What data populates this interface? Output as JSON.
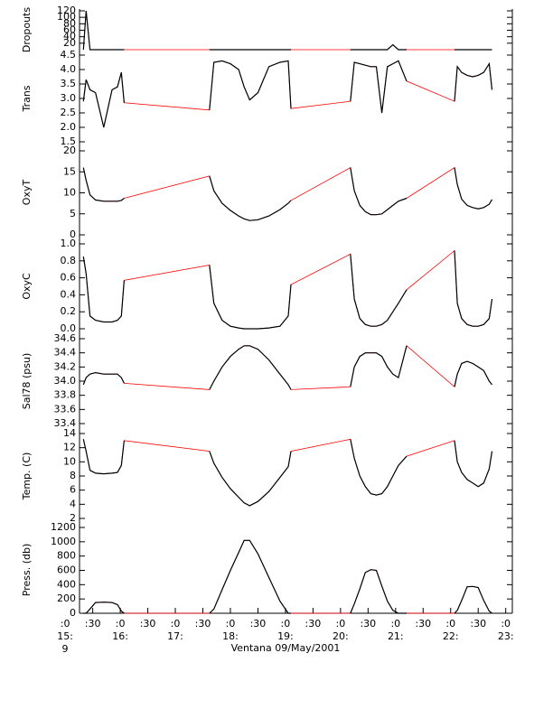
{
  "chart_data": {
    "type": "line",
    "xlabel": "Ventana 09/May/2001",
    "x_day_label": "9",
    "xlim": [
      15.26,
      23.12
    ],
    "xticks": [
      {
        "value": 15.0,
        "label": ":0"
      },
      {
        "value": 15.5,
        "label": ":30"
      },
      {
        "value": 16.0,
        "label": ":0"
      },
      {
        "value": 16.5,
        "label": ":30"
      },
      {
        "value": 17.0,
        "label": ":0"
      },
      {
        "value": 17.5,
        "label": ":30"
      },
      {
        "value": 18.0,
        "label": ":0"
      },
      {
        "value": 18.5,
        "label": ":30"
      },
      {
        "value": 19.0,
        "label": ":0"
      },
      {
        "value": 19.5,
        "label": ":30"
      },
      {
        "value": 20.0,
        "label": ":0"
      },
      {
        "value": 20.5,
        "label": ":30"
      },
      {
        "value": 21.0,
        "label": ":0"
      },
      {
        "value": 21.5,
        "label": ":30"
      },
      {
        "value": 22.0,
        "label": ":0"
      },
      {
        "value": 22.5,
        "label": ":30"
      },
      {
        "value": 23.0,
        "label": ":0"
      }
    ],
    "xhour_labels": [
      {
        "value": 15,
        "label": "15:"
      },
      {
        "value": 16,
        "label": "16:"
      },
      {
        "value": 17,
        "label": "17:"
      },
      {
        "value": 18,
        "label": "18:"
      },
      {
        "value": 19,
        "label": "19:"
      },
      {
        "value": 20,
        "label": "20:"
      },
      {
        "value": 21,
        "label": "21:"
      },
      {
        "value": 22,
        "label": "22:"
      },
      {
        "value": 23,
        "label": "23:"
      }
    ],
    "color": "#000000",
    "connector_color": "#ff0000",
    "x": [
      15.33,
      15.38,
      15.45,
      15.55,
      15.7,
      15.85,
      15.95,
      16.02,
      16.07,
      17.62,
      17.7,
      17.85,
      18.0,
      18.15,
      18.25,
      18.35,
      18.5,
      18.7,
      18.9,
      19.05,
      19.1,
      20.18,
      20.25,
      20.35,
      20.45,
      20.55,
      20.65,
      20.75,
      20.85,
      20.95,
      21.05,
      21.2,
      22.07,
      22.12,
      22.2,
      22.3,
      22.4,
      22.5,
      22.6,
      22.7,
      22.75
    ],
    "panels": [
      {
        "ylabel": "Dropouts",
        "ylim": [
          0,
          120
        ],
        "yticks": [
          20,
          40,
          60,
          80,
          100,
          120
        ],
        "values": [
          0,
          120,
          0,
          0,
          0,
          0,
          0,
          0,
          0,
          0,
          0,
          0,
          0,
          0,
          0,
          0,
          0,
          0,
          0,
          0,
          0,
          0,
          0,
          0,
          0,
          0,
          0,
          0,
          0,
          15,
          0,
          0,
          0,
          0,
          0,
          0,
          0,
          0,
          0,
          0,
          0
        ]
      },
      {
        "ylabel": "Trans",
        "ylim": [
          1.5,
          4.5
        ],
        "yticks": [
          1.5,
          {
            "value": 2.0,
            "label": "2.0"
          },
          2.5,
          {
            "value": 3.0,
            "label": "3.0"
          },
          3.5,
          {
            "value": 4.0,
            "label": "4.0"
          },
          4.5
        ],
        "values": [
          2.9,
          3.65,
          3.3,
          3.2,
          2.0,
          3.3,
          3.4,
          3.9,
          2.85,
          2.6,
          4.25,
          4.3,
          4.2,
          4.0,
          3.4,
          2.95,
          3.2,
          4.1,
          4.25,
          4.3,
          2.65,
          2.9,
          4.25,
          4.2,
          4.15,
          4.1,
          4.1,
          2.5,
          4.1,
          4.2,
          4.3,
          3.6,
          2.9,
          4.1,
          3.9,
          3.8,
          3.75,
          3.8,
          3.9,
          4.2,
          3.3
        ]
      },
      {
        "ylabel": "OxyT",
        "ylim": [
          0,
          20
        ],
        "yticks": [
          0,
          5,
          10,
          15,
          20
        ],
        "values": [
          16,
          13,
          9.5,
          8.3,
          8.0,
          8.0,
          8.0,
          8.2,
          8.7,
          14,
          10.5,
          7.5,
          5.8,
          4.5,
          3.8,
          3.4,
          3.6,
          4.5,
          6.0,
          7.5,
          8.2,
          16,
          10.5,
          7.0,
          5.5,
          4.8,
          4.8,
          5.0,
          6.0,
          7.0,
          8.0,
          8.7,
          16,
          12,
          8.5,
          7.0,
          6.5,
          6.2,
          6.5,
          7.3,
          8.4
        ]
      },
      {
        "ylabel": "OxyC",
        "ylim": [
          0,
          1
        ],
        "yticks": [
          {
            "value": 0,
            "label": "0.0"
          },
          0.2,
          0.4,
          0.6,
          0.8,
          {
            "value": 1,
            "label": "1.0"
          }
        ],
        "values": [
          0.85,
          0.65,
          0.15,
          0.1,
          0.08,
          0.08,
          0.1,
          0.15,
          0.57,
          0.75,
          0.3,
          0.1,
          0.03,
          0.01,
          0.0,
          0.0,
          0.0,
          0.01,
          0.03,
          0.15,
          0.52,
          0.88,
          0.35,
          0.12,
          0.05,
          0.03,
          0.03,
          0.05,
          0.1,
          0.2,
          0.3,
          0.46,
          0.92,
          0.3,
          0.12,
          0.05,
          0.03,
          0.03,
          0.05,
          0.12,
          0.35
        ]
      },
      {
        "ylabel": "Sal78 (psu)",
        "ylim": [
          33.4,
          34.6
        ],
        "yticks": [
          33.4,
          33.6,
          33.8,
          {
            "value": 34.0,
            "label": "34.0"
          },
          34.2,
          34.4,
          34.6
        ],
        "values": [
          33.95,
          34.05,
          34.1,
          34.12,
          34.1,
          34.1,
          34.1,
          34.05,
          33.97,
          33.88,
          34.0,
          34.2,
          34.35,
          34.45,
          34.5,
          34.5,
          34.45,
          34.3,
          34.1,
          33.95,
          33.88,
          33.92,
          34.2,
          34.35,
          34.4,
          34.4,
          34.4,
          34.35,
          34.2,
          34.1,
          34.05,
          34.5,
          33.92,
          34.1,
          34.25,
          34.28,
          34.25,
          34.2,
          34.15,
          34.0,
          33.95
        ]
      },
      {
        "ylabel": "Temp. (C)",
        "ylim": [
          2,
          14
        ],
        "yticks": [
          2,
          4,
          6,
          8,
          10,
          12,
          14
        ],
        "values": [
          13.2,
          11.5,
          8.8,
          8.4,
          8.3,
          8.4,
          8.5,
          9.5,
          13.0,
          11.5,
          9.8,
          7.8,
          6.2,
          5.0,
          4.2,
          3.8,
          4.4,
          5.8,
          7.8,
          9.3,
          11.5,
          13.2,
          10.5,
          8.0,
          6.5,
          5.5,
          5.3,
          5.5,
          6.5,
          8.0,
          9.5,
          10.8,
          13.0,
          10.0,
          8.5,
          7.5,
          7.0,
          6.5,
          7.0,
          9.0,
          11.5
        ]
      },
      {
        "ylabel": "Press. (db)",
        "ylim": [
          0,
          1200
        ],
        "yticks": [
          0,
          200,
          400,
          600,
          800,
          1000,
          1200
        ],
        "values": [
          0,
          0,
          60,
          150,
          155,
          150,
          120,
          30,
          0,
          0,
          60,
          330,
          600,
          850,
          1020,
          1020,
          830,
          500,
          170,
          0,
          0,
          0,
          130,
          340,
          570,
          610,
          600,
          380,
          170,
          40,
          0,
          0,
          0,
          40,
          180,
          370,
          375,
          360,
          180,
          30,
          0
        ]
      }
    ]
  }
}
